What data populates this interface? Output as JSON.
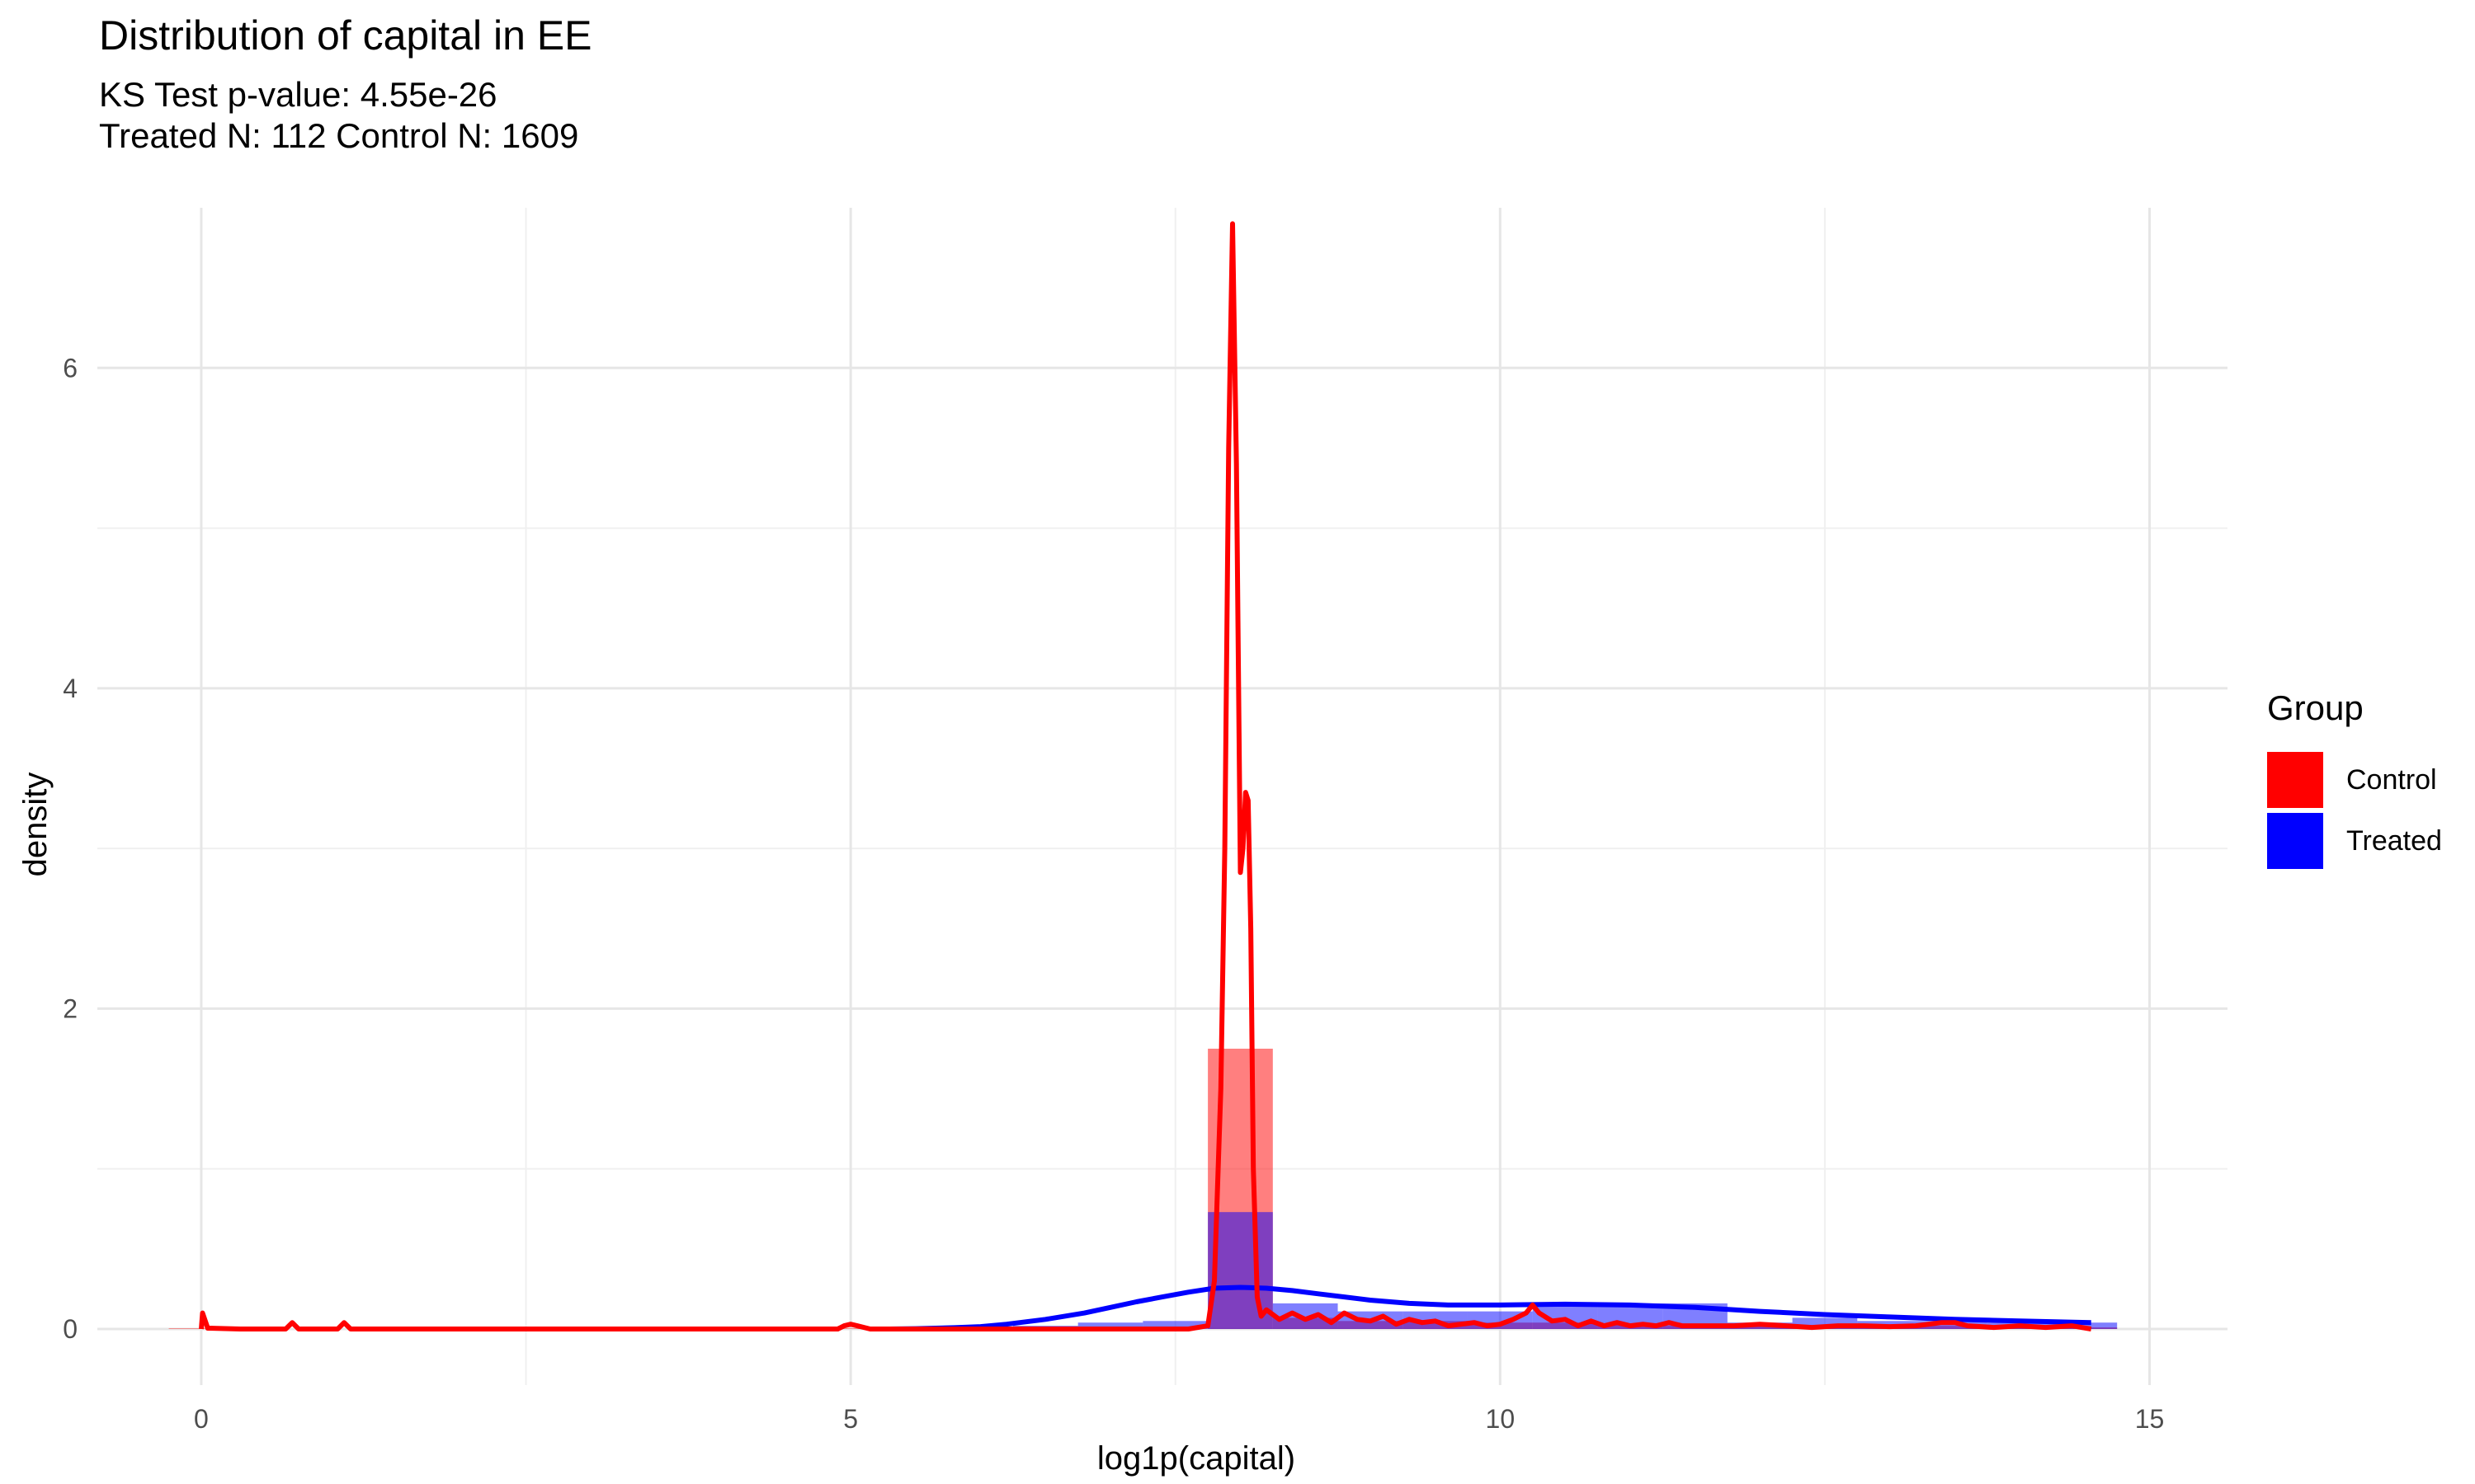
{
  "chart_data": {
    "type": "area",
    "title": "Distribution of capital in EE",
    "subtitle_lines": [
      "KS Test p-value: 4.55e-26",
      "Treated N: 112 Control N: 1609"
    ],
    "xlabel": "log1p(capital)",
    "ylabel": "density",
    "xlim": [
      -0.8,
      15.6
    ],
    "ylim": [
      -0.35,
      7.0
    ],
    "x_ticks": [
      0,
      5,
      10,
      15
    ],
    "y_ticks": [
      0,
      2,
      4,
      6
    ],
    "grid": true,
    "legend": {
      "title": "Group",
      "position": "right",
      "items": [
        {
          "label": "Control",
          "color": "#ff0000"
        },
        {
          "label": "Treated",
          "color": "#0000ff"
        }
      ]
    },
    "histograms": [
      {
        "name": "Control",
        "color": "#ff0000",
        "opacity": 0.5,
        "bins": [
          {
            "x0": -0.25,
            "x1": 0.25,
            "density": 0.004
          },
          {
            "x0": 4.75,
            "x1": 5.25,
            "density": 0.004
          },
          {
            "x0": 7.75,
            "x1": 8.25,
            "density": 1.75
          },
          {
            "x0": 8.25,
            "x1": 8.75,
            "density": 0.07
          },
          {
            "x0": 8.75,
            "x1": 9.25,
            "density": 0.05
          },
          {
            "x0": 9.25,
            "x1": 9.75,
            "density": 0.05
          },
          {
            "x0": 9.75,
            "x1": 10.25,
            "density": 0.04
          },
          {
            "x0": 10.25,
            "x1": 10.75,
            "density": 0.04
          },
          {
            "x0": 10.75,
            "x1": 11.25,
            "density": 0.03
          },
          {
            "x0": 11.25,
            "x1": 11.75,
            "density": 0.02
          },
          {
            "x0": 11.75,
            "x1": 12.25,
            "density": 0.02
          },
          {
            "x0": 12.25,
            "x1": 12.75,
            "density": 0.015
          },
          {
            "x0": 12.75,
            "x1": 13.25,
            "density": 0.015
          },
          {
            "x0": 13.25,
            "x1": 13.75,
            "density": 0.02
          },
          {
            "x0": 13.75,
            "x1": 14.25,
            "density": 0.015
          },
          {
            "x0": 14.25,
            "x1": 14.75,
            "density": 0.01
          }
        ]
      },
      {
        "name": "Treated",
        "color": "#0000ff",
        "opacity": 0.5,
        "bins": [
          {
            "x0": 5.25,
            "x1": 5.75,
            "density": 0.01
          },
          {
            "x0": 5.75,
            "x1": 6.25,
            "density": 0.01
          },
          {
            "x0": 6.25,
            "x1": 6.75,
            "density": 0.02
          },
          {
            "x0": 6.75,
            "x1": 7.25,
            "density": 0.04
          },
          {
            "x0": 7.25,
            "x1": 7.75,
            "density": 0.05
          },
          {
            "x0": 7.75,
            "x1": 8.25,
            "density": 0.73
          },
          {
            "x0": 8.25,
            "x1": 8.75,
            "density": 0.16
          },
          {
            "x0": 8.75,
            "x1": 9.25,
            "density": 0.11
          },
          {
            "x0": 9.25,
            "x1": 9.75,
            "density": 0.11
          },
          {
            "x0": 9.75,
            "x1": 10.25,
            "density": 0.11
          },
          {
            "x0": 10.25,
            "x1": 10.75,
            "density": 0.14
          },
          {
            "x0": 10.75,
            "x1": 11.25,
            "density": 0.16
          },
          {
            "x0": 11.25,
            "x1": 11.75,
            "density": 0.16
          },
          {
            "x0": 11.75,
            "x1": 12.25,
            "density": 0.04
          },
          {
            "x0": 12.25,
            "x1": 12.75,
            "density": 0.07
          },
          {
            "x0": 12.75,
            "x1": 13.25,
            "density": 0.05
          },
          {
            "x0": 13.25,
            "x1": 13.75,
            "density": 0.05
          },
          {
            "x0": 13.75,
            "x1": 14.25,
            "density": 0.04
          },
          {
            "x0": 14.25,
            "x1": 14.75,
            "density": 0.04
          }
        ]
      }
    ],
    "density_curves": [
      {
        "name": "Treated",
        "color": "#0000ff",
        "points": [
          [
            5.3,
            0.0
          ],
          [
            5.5,
            0.002
          ],
          [
            5.8,
            0.008
          ],
          [
            6.0,
            0.015
          ],
          [
            6.2,
            0.03
          ],
          [
            6.5,
            0.06
          ],
          [
            6.8,
            0.1
          ],
          [
            7.0,
            0.135
          ],
          [
            7.2,
            0.17
          ],
          [
            7.4,
            0.2
          ],
          [
            7.6,
            0.23
          ],
          [
            7.8,
            0.255
          ],
          [
            8.0,
            0.26
          ],
          [
            8.2,
            0.255
          ],
          [
            8.4,
            0.24
          ],
          [
            8.6,
            0.22
          ],
          [
            8.8,
            0.2
          ],
          [
            9.0,
            0.18
          ],
          [
            9.3,
            0.16
          ],
          [
            9.6,
            0.15
          ],
          [
            10.0,
            0.15
          ],
          [
            10.5,
            0.155
          ],
          [
            11.0,
            0.15
          ],
          [
            11.5,
            0.135
          ],
          [
            12.0,
            0.11
          ],
          [
            12.5,
            0.09
          ],
          [
            13.0,
            0.075
          ],
          [
            13.5,
            0.06
          ],
          [
            14.0,
            0.05
          ],
          [
            14.55,
            0.04
          ]
        ]
      },
      {
        "name": "Control",
        "color": "#ff0000",
        "points": [
          [
            0.0,
            0.0
          ],
          [
            0.01,
            0.1
          ],
          [
            0.05,
            0.005
          ],
          [
            0.3,
            0.0
          ],
          [
            0.65,
            0.0
          ],
          [
            0.7,
            0.04
          ],
          [
            0.75,
            0.0
          ],
          [
            1.05,
            0.0
          ],
          [
            1.1,
            0.04
          ],
          [
            1.15,
            0.0
          ],
          [
            4.9,
            0.0
          ],
          [
            4.95,
            0.02
          ],
          [
            5.0,
            0.03
          ],
          [
            5.05,
            0.02
          ],
          [
            5.15,
            0.0
          ],
          [
            7.6,
            0.0
          ],
          [
            7.75,
            0.02
          ],
          [
            7.8,
            0.3
          ],
          [
            7.85,
            1.5
          ],
          [
            7.88,
            3.0
          ],
          [
            7.91,
            5.5
          ],
          [
            7.94,
            6.9
          ],
          [
            7.97,
            5.4
          ],
          [
            8.0,
            2.85
          ],
          [
            8.02,
            3.0
          ],
          [
            8.04,
            3.35
          ],
          [
            8.06,
            3.3
          ],
          [
            8.08,
            2.5
          ],
          [
            8.1,
            1.0
          ],
          [
            8.13,
            0.2
          ],
          [
            8.16,
            0.08
          ],
          [
            8.2,
            0.12
          ],
          [
            8.3,
            0.06
          ],
          [
            8.4,
            0.1
          ],
          [
            8.5,
            0.06
          ],
          [
            8.6,
            0.09
          ],
          [
            8.7,
            0.04
          ],
          [
            8.8,
            0.1
          ],
          [
            8.9,
            0.06
          ],
          [
            9.0,
            0.05
          ],
          [
            9.1,
            0.08
          ],
          [
            9.2,
            0.03
          ],
          [
            9.3,
            0.06
          ],
          [
            9.4,
            0.04
          ],
          [
            9.5,
            0.05
          ],
          [
            9.6,
            0.02
          ],
          [
            9.7,
            0.03
          ],
          [
            9.8,
            0.04
          ],
          [
            9.9,
            0.02
          ],
          [
            10.0,
            0.03
          ],
          [
            10.1,
            0.06
          ],
          [
            10.2,
            0.1
          ],
          [
            10.25,
            0.15
          ],
          [
            10.3,
            0.1
          ],
          [
            10.4,
            0.05
          ],
          [
            10.5,
            0.06
          ],
          [
            10.6,
            0.02
          ],
          [
            10.7,
            0.05
          ],
          [
            10.8,
            0.02
          ],
          [
            10.9,
            0.04
          ],
          [
            11.0,
            0.02
          ],
          [
            11.1,
            0.03
          ],
          [
            11.2,
            0.02
          ],
          [
            11.3,
            0.04
          ],
          [
            11.4,
            0.02
          ],
          [
            11.6,
            0.02
          ],
          [
            11.8,
            0.02
          ],
          [
            12.0,
            0.03
          ],
          [
            12.2,
            0.02
          ],
          [
            12.4,
            0.01
          ],
          [
            12.6,
            0.02
          ],
          [
            12.8,
            0.02
          ],
          [
            13.0,
            0.015
          ],
          [
            13.2,
            0.02
          ],
          [
            13.4,
            0.04
          ],
          [
            13.5,
            0.04
          ],
          [
            13.6,
            0.02
          ],
          [
            13.8,
            0.01
          ],
          [
            14.0,
            0.02
          ],
          [
            14.2,
            0.01
          ],
          [
            14.4,
            0.02
          ],
          [
            14.55,
            0.0
          ]
        ]
      }
    ]
  }
}
